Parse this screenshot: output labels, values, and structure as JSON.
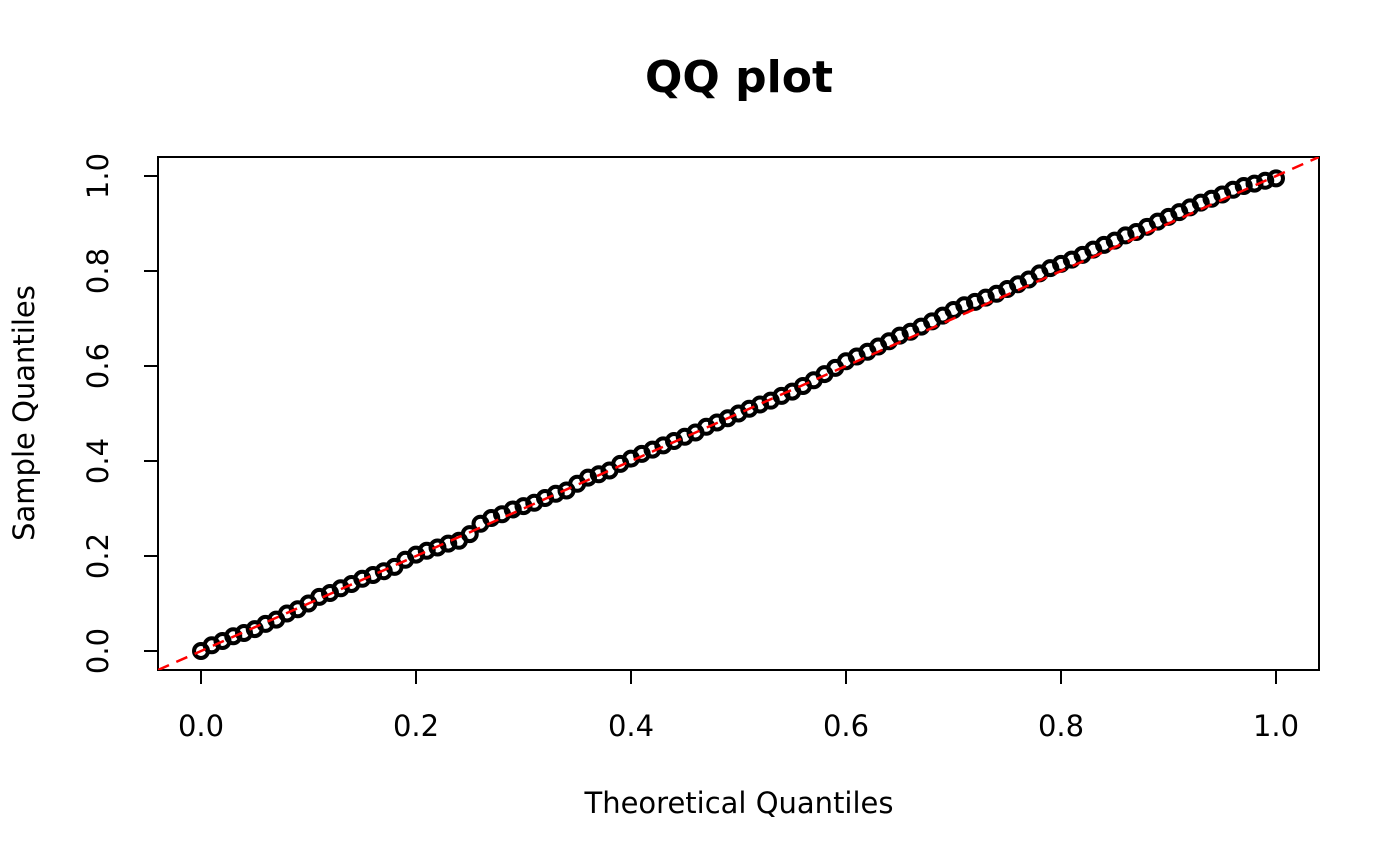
{
  "chart_data": {
    "type": "scatter",
    "title": "QQ plot",
    "x_label": "Theoretical Quantiles",
    "y_label": "Sample Quantiles",
    "x": [
      0,
      0.01,
      0.02,
      0.03,
      0.04,
      0.05,
      0.06,
      0.07,
      0.08,
      0.09,
      0.1,
      0.11,
      0.12,
      0.13,
      0.14,
      0.15,
      0.16,
      0.17,
      0.18,
      0.19,
      0.2,
      0.21,
      0.22,
      0.23,
      0.24,
      0.25,
      0.26,
      0.27,
      0.28,
      0.29,
      0.3,
      0.31,
      0.32,
      0.33,
      0.34,
      0.35,
      0.36,
      0.37,
      0.38,
      0.39,
      0.4,
      0.41,
      0.42,
      0.43,
      0.44,
      0.45,
      0.46,
      0.47,
      0.48,
      0.49,
      0.5,
      0.51,
      0.52,
      0.53,
      0.54,
      0.55,
      0.56,
      0.57,
      0.58,
      0.59,
      0.6,
      0.61,
      0.62,
      0.63,
      0.64,
      0.65,
      0.66,
      0.67,
      0.68,
      0.69,
      0.7,
      0.71,
      0.72,
      0.73,
      0.74,
      0.75,
      0.76,
      0.77,
      0.78,
      0.79,
      0.8,
      0.81,
      0.82,
      0.83,
      0.84,
      0.85,
      0.86,
      0.87,
      0.88,
      0.89,
      0.9,
      0.91,
      0.92,
      0.93,
      0.94,
      0.95,
      0.96,
      0.97,
      0.98,
      0.99,
      1
    ],
    "values": [
      0,
      0.012,
      0.021,
      0.031,
      0.038,
      0.046,
      0.057,
      0.066,
      0.079,
      0.088,
      0.1,
      0.114,
      0.122,
      0.132,
      0.141,
      0.152,
      0.16,
      0.168,
      0.177,
      0.192,
      0.203,
      0.211,
      0.218,
      0.226,
      0.232,
      0.246,
      0.268,
      0.28,
      0.288,
      0.298,
      0.305,
      0.312,
      0.322,
      0.331,
      0.338,
      0.352,
      0.365,
      0.372,
      0.38,
      0.394,
      0.405,
      0.415,
      0.424,
      0.433,
      0.442,
      0.451,
      0.46,
      0.472,
      0.481,
      0.49,
      0.5,
      0.51,
      0.519,
      0.527,
      0.537,
      0.546,
      0.558,
      0.57,
      0.583,
      0.596,
      0.61,
      0.62,
      0.63,
      0.641,
      0.652,
      0.664,
      0.672,
      0.683,
      0.694,
      0.706,
      0.718,
      0.728,
      0.735,
      0.744,
      0.752,
      0.762,
      0.772,
      0.782,
      0.795,
      0.806,
      0.815,
      0.824,
      0.834,
      0.845,
      0.855,
      0.864,
      0.875,
      0.882,
      0.893,
      0.904,
      0.914,
      0.924,
      0.934,
      0.944,
      0.952,
      0.961,
      0.971,
      0.979,
      0.984,
      0.99,
      0.995
    ],
    "color": "#000000",
    "reference_line": {
      "intercept": 0,
      "slope": 1,
      "color": "#ff0000",
      "dashed": true
    },
    "xlim": [
      -0.04,
      1.04
    ],
    "ylim": [
      -0.04,
      1.04
    ],
    "xticks": [
      {
        "value": 0,
        "label": "0.0"
      },
      {
        "value": 0.2,
        "label": "0.2"
      },
      {
        "value": 0.4,
        "label": "0.4"
      },
      {
        "value": 0.6,
        "label": "0.6"
      },
      {
        "value": 0.8,
        "label": "0.8"
      },
      {
        "value": 1,
        "label": "1.0"
      }
    ],
    "yticks": [
      {
        "value": 0,
        "label": "0.0"
      },
      {
        "value": 0.2,
        "label": "0.2"
      },
      {
        "value": 0.4,
        "label": "0.4"
      },
      {
        "value": 0.6,
        "label": "0.6"
      },
      {
        "value": 0.8,
        "label": "0.8"
      },
      {
        "value": 1,
        "label": "1.0"
      }
    ],
    "grid": false
  }
}
